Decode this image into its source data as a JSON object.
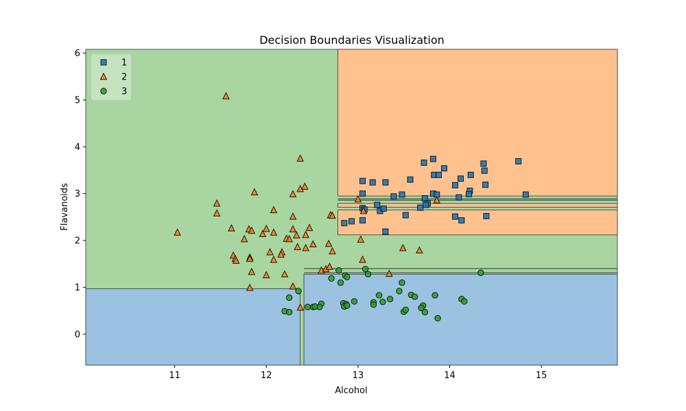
{
  "chart_data": {
    "type": "scatter",
    "title": "Decision Boundaries Visualization",
    "xlabel": "Alcohol",
    "ylabel": "Flavanoids",
    "xlim": [
      10.03,
      15.83
    ],
    "ylim": [
      -0.66,
      6.08
    ],
    "xticks": [
      11,
      12,
      13,
      14,
      15
    ],
    "yticks": [
      0,
      1,
      2,
      3,
      4,
      5,
      6
    ],
    "grid": false,
    "legend_position": "top-left",
    "colors": {
      "class1": "#1f77b4",
      "class2": "#ff7f0e",
      "class3": "#2ca02c",
      "region1": "#ffc28f",
      "region2": "#a8d5a0",
      "region3": "#9bc3e1",
      "boundary": "#333333"
    },
    "regions": [
      {
        "class": "2",
        "x": [
          10.03,
          15.83
        ],
        "y": [
          -0.66,
          6.08
        ]
      },
      {
        "class": "3",
        "x": [
          10.03,
          12.37
        ],
        "y": [
          -0.66,
          0.97
        ]
      },
      {
        "class": "3",
        "x": [
          12.41,
          15.83
        ],
        "y": [
          -0.66,
          1.28
        ]
      },
      {
        "class": "1",
        "x": [
          12.78,
          15.83
        ],
        "y": [
          2.95,
          6.08
        ]
      },
      {
        "class": "1",
        "x": [
          12.78,
          15.83
        ],
        "y": [
          2.71,
          2.79
        ]
      },
      {
        "class": "1",
        "x": [
          12.78,
          15.83
        ],
        "y": [
          2.12,
          2.65
        ]
      }
    ],
    "boundary_lines": [
      {
        "x": [
          12.41,
          15.83
        ],
        "y": [
          1.4,
          1.4
        ]
      },
      {
        "x": [
          12.41,
          15.83
        ],
        "y": [
          1.31,
          1.31
        ]
      },
      {
        "x": [
          12.78,
          15.83
        ],
        "y": [
          2.89,
          2.89
        ]
      },
      {
        "x": [
          12.78,
          15.83
        ],
        "y": [
          2.86,
          2.86
        ]
      }
    ],
    "series": [
      {
        "name": "1",
        "marker": "square",
        "points": [
          [
            13.05,
            3.27
          ],
          [
            13.16,
            3.24
          ],
          [
            13.3,
            3.24
          ],
          [
            13.57,
            3.3
          ],
          [
            13.72,
            3.66
          ],
          [
            13.82,
            3.74
          ],
          [
            13.94,
            3.54
          ],
          [
            14.37,
            3.64
          ],
          [
            14.75,
            3.69
          ],
          [
            14.06,
            3.18
          ],
          [
            14.12,
            3.32
          ],
          [
            14.23,
            3.4
          ],
          [
            14.38,
            3.49
          ],
          [
            14.39,
            3.19
          ],
          [
            14.22,
            3.06
          ],
          [
            14.21,
            2.99
          ],
          [
            13.83,
            3.4
          ],
          [
            13.88,
            3.4
          ],
          [
            13.05,
            3.0
          ],
          [
            13.48,
            2.98
          ],
          [
            13.73,
            2.9
          ],
          [
            13.76,
            2.79
          ],
          [
            13.74,
            2.76
          ],
          [
            13.82,
            3.0
          ],
          [
            13.86,
            2.98
          ],
          [
            14.1,
            2.92
          ],
          [
            14.83,
            2.98
          ],
          [
            13.39,
            2.94
          ],
          [
            13.21,
            2.76
          ],
          [
            13.05,
            2.69
          ],
          [
            13.07,
            2.66
          ],
          [
            13.24,
            2.63
          ],
          [
            13.28,
            2.68
          ],
          [
            13.68,
            2.7
          ],
          [
            13.52,
            2.54
          ],
          [
            14.06,
            2.51
          ],
          [
            14.13,
            2.43
          ],
          [
            14.4,
            2.52
          ],
          [
            13.05,
            2.43
          ],
          [
            12.85,
            2.37
          ],
          [
            12.93,
            2.41
          ],
          [
            13.3,
            2.19
          ]
        ]
      },
      {
        "name": "2",
        "marker": "triangle",
        "points": [
          [
            11.56,
            5.08
          ],
          [
            12.37,
            3.75
          ],
          [
            12.37,
            3.1
          ],
          [
            12.42,
            3.15
          ],
          [
            12.29,
            2.99
          ],
          [
            11.87,
            3.03
          ],
          [
            11.46,
            2.79
          ],
          [
            11.46,
            2.58
          ],
          [
            12.08,
            2.65
          ],
          [
            12.29,
            2.51
          ],
          [
            11.62,
            2.26
          ],
          [
            11.81,
            2.24
          ],
          [
            11.84,
            2.21
          ],
          [
            12.0,
            2.25
          ],
          [
            11.96,
            2.14
          ],
          [
            12.08,
            2.17
          ],
          [
            12.29,
            2.24
          ],
          [
            12.33,
            2.11
          ],
          [
            12.43,
            2.12
          ],
          [
            12.47,
            2.27
          ],
          [
            11.76,
            2.03
          ],
          [
            12.22,
            2.04
          ],
          [
            12.25,
            2.03
          ],
          [
            11.03,
            2.17
          ],
          [
            12.51,
            1.92
          ],
          [
            12.7,
            2.54
          ],
          [
            12.72,
            2.53
          ],
          [
            13.0,
            2.88
          ],
          [
            13.06,
            2.63
          ],
          [
            13.03,
            2.02
          ],
          [
            12.68,
            1.93
          ],
          [
            12.34,
            1.86
          ],
          [
            12.43,
            1.84
          ],
          [
            12.72,
            1.77
          ],
          [
            12.17,
            1.75
          ],
          [
            12.04,
            1.75
          ],
          [
            12.16,
            1.7
          ],
          [
            11.64,
            1.68
          ],
          [
            11.66,
            1.61
          ],
          [
            11.67,
            1.57
          ],
          [
            11.82,
            1.64
          ],
          [
            11.82,
            1.61
          ],
          [
            12.08,
            1.59
          ],
          [
            11.84,
            1.33
          ],
          [
            12.0,
            1.26
          ],
          [
            12.2,
            1.28
          ],
          [
            12.6,
            1.36
          ],
          [
            12.65,
            1.39
          ],
          [
            12.69,
            1.44
          ],
          [
            13.05,
            1.59
          ],
          [
            13.49,
            1.84
          ],
          [
            13.67,
            1.79
          ],
          [
            13.86,
            2.86
          ],
          [
            13.34,
            1.29
          ],
          [
            11.82,
            0.99
          ],
          [
            12.29,
            1.02
          ],
          [
            12.37,
            0.57
          ]
        ]
      },
      {
        "name": "3",
        "marker": "circle",
        "points": [
          [
            12.79,
            1.36
          ],
          [
            13.08,
            1.39
          ],
          [
            12.86,
            1.25
          ],
          [
            12.88,
            1.22
          ],
          [
            12.71,
            1.19
          ],
          [
            13.11,
            1.28
          ],
          [
            12.81,
            1.1
          ],
          [
            13.48,
            1.1
          ],
          [
            14.34,
            1.31
          ],
          [
            12.35,
            0.92
          ],
          [
            13.45,
            0.92
          ],
          [
            12.25,
            0.78
          ],
          [
            13.23,
            0.83
          ],
          [
            13.58,
            0.84
          ],
          [
            13.62,
            0.8
          ],
          [
            13.84,
            0.83
          ],
          [
            13.27,
            0.69
          ],
          [
            13.35,
            0.75
          ],
          [
            14.13,
            0.75
          ],
          [
            14.16,
            0.7
          ],
          [
            12.96,
            0.7
          ],
          [
            13.17,
            0.68
          ],
          [
            13.17,
            0.63
          ],
          [
            12.84,
            0.66
          ],
          [
            12.87,
            0.64
          ],
          [
            12.85,
            0.59
          ],
          [
            12.88,
            0.61
          ],
          [
            12.6,
            0.65
          ],
          [
            12.58,
            0.58
          ],
          [
            12.51,
            0.58
          ],
          [
            12.53,
            0.59
          ],
          [
            12.45,
            0.58
          ],
          [
            13.71,
            0.61
          ],
          [
            13.69,
            0.56
          ],
          [
            13.5,
            0.48
          ],
          [
            13.52,
            0.52
          ],
          [
            13.73,
            0.47
          ],
          [
            12.2,
            0.49
          ],
          [
            12.25,
            0.47
          ],
          [
            13.87,
            0.34
          ]
        ]
      }
    ],
    "legend": [
      {
        "label": "1",
        "marker": "square"
      },
      {
        "label": "2",
        "marker": "triangle"
      },
      {
        "label": "3",
        "marker": "circle"
      }
    ]
  }
}
